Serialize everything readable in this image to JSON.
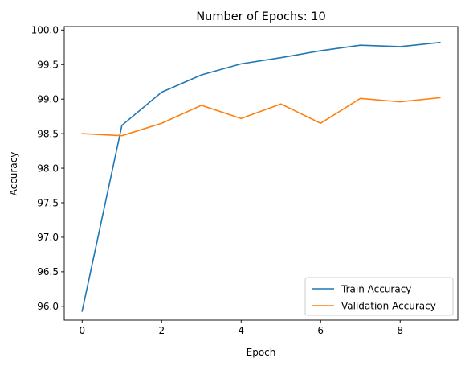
{
  "chart_data": {
    "type": "line",
    "title": "Number of Epochs: 10",
    "xlabel": "Epoch",
    "ylabel": "Accuracy",
    "xlim": [
      -0.45,
      9.45
    ],
    "ylim": [
      95.8,
      100.05
    ],
    "xticks": [
      0,
      2,
      4,
      6,
      8
    ],
    "xtick_labels": [
      "0",
      "2",
      "4",
      "6",
      "8"
    ],
    "yticks": [
      96.0,
      96.5,
      97.0,
      97.5,
      98.0,
      98.5,
      99.0,
      99.5,
      100.0
    ],
    "ytick_labels": [
      "96.0",
      "96.5",
      "97.0",
      "97.5",
      "98.0",
      "98.5",
      "99.0",
      "99.5",
      "100.0"
    ],
    "grid": false,
    "legend_position": "lower-right",
    "x": [
      0,
      1,
      2,
      3,
      4,
      5,
      6,
      7,
      8,
      9
    ],
    "series": [
      {
        "name": "Train Accuracy",
        "color": "#1f77b4",
        "values": [
          95.93,
          98.62,
          99.1,
          99.35,
          99.51,
          99.6,
          99.7,
          99.78,
          99.76,
          99.82
        ]
      },
      {
        "name": "Validation Accuracy",
        "color": "#ff7f0e",
        "values": [
          98.5,
          98.47,
          98.65,
          98.91,
          98.72,
          98.93,
          98.65,
          99.01,
          98.96,
          99.02
        ]
      }
    ]
  }
}
